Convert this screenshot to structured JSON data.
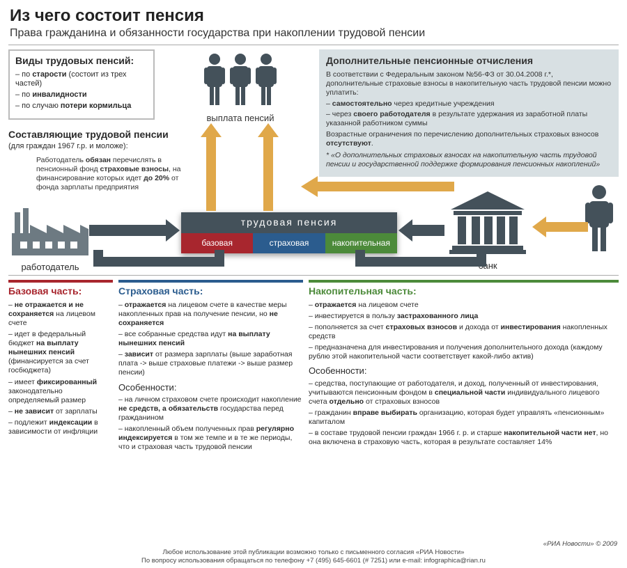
{
  "colors": {
    "bg": "#ffffff",
    "panel_bg": "#d8e0e3",
    "text": "#2a2a2a",
    "gray_dark": "#44515a",
    "gray_mid": "#6d7a82",
    "border_gray": "#bbbbbb",
    "red": "#a8262e",
    "blue": "#2b5c8e",
    "green": "#4c8a3a",
    "orange": "#d89a3a",
    "arrow_orange": "#e0a84a",
    "arrow_gray": "#44515a"
  },
  "title": "Из чего состоит пенсия",
  "subtitle": "Права гражданина и обязанности государства при накоплении трудовой пенсии",
  "types": {
    "heading": "Виды трудовых пенсий:",
    "items": [
      {
        "prefix": "– по ",
        "bold": "старости",
        "suffix": " (состоит из трех частей)"
      },
      {
        "prefix": "– по ",
        "bold": "инвалидности",
        "suffix": ""
      },
      {
        "prefix": "– по случаю ",
        "bold": "потери кормильца",
        "suffix": ""
      }
    ]
  },
  "components": {
    "heading": "Составляющие трудовой пенсии",
    "sub": "(для граждан 1967 г.р. и моложе):",
    "text_html": "Работодатель <b>обязан</b> перечислять в пенсионный фонд <b>страховые взносы</b>, на финансирование которых идет <b>до 20%</b> от фонда зарплаты предприятия"
  },
  "people_label": "выплата пенсий",
  "additional": {
    "heading": "Дополнительные пенсионные отчисления",
    "intro": "В соответствии с Федеральным законом №56-ФЗ от 30.04.2008 г.*, дополнительные страховые взносы в накопительную часть трудовой пенсии можно уплатить:",
    "items": [
      "– <b>самостоятельно</b> через кредитные учреждения",
      "– через <b>своего работодателя</b> в результате удержания из заработной платы указанной работником суммы"
    ],
    "note1": "Возрастные ограничения по перечислению дополнительных страховых взносов <b>отсутствуют</b>.",
    "note2": "* «О дополнительных страховых взносах на накопительную часть трудовой пенсии и государственной поддержке формирования пенсионных накоплений»"
  },
  "labels": {
    "employer": "работодатель",
    "bank": "банк"
  },
  "pension_bar": {
    "header": "трудовая пенсия",
    "header_bg": "#44515a",
    "cells": [
      {
        "label": "базовая",
        "bg": "#a8262e"
      },
      {
        "label": "страховая",
        "bg": "#2b5c8e"
      },
      {
        "label": "накопительная",
        "bg": "#4c8a3a"
      }
    ]
  },
  "col1": {
    "heading": "Базовая часть:",
    "items": [
      "– <b>не отражается и не сохраняется</b> на лицевом счете",
      "– идет в федеральный бюджет <b>на выплату нынешних пенсий</b> (финансируется за счет госбюджета)",
      "– имеет <b>фиксированный</b> законодательно определяемый размер",
      "– <b>не зависит</b> от зарплаты",
      "– подлежит <b>индексации</b> в зависимости от инфляции"
    ]
  },
  "col2": {
    "heading": "Страховая часть:",
    "items": [
      "– <b>отражается</b> на лицевом счете в качестве меры накопленных прав на получение пенсии, но <b>не сохраняется</b>",
      "– все собранные средства идут <b>на выплату нынешних пенсий</b>",
      "– <b>зависит</b> от размера зарплаты (выше заработная плата -> выше страховые платежи -> выше размер пенсии)"
    ],
    "features_heading": "Особенности:",
    "features": [
      "– на личном страховом счете происходит накопление <b>не средств, а обязательств</b> государства перед гражданином",
      "– накопленный объем полученных прав <b>регулярно индексируется</b> в том же темпе и в те же периоды, что и страховая часть трудовой пенсии"
    ]
  },
  "col3": {
    "heading": "Накопительная часть:",
    "items": [
      "– <b>отражается</b> на лицевом счете",
      "– инвестируется в пользу <b>застрахованного лица</b>",
      "– пополняется за счет <b>страховых взносов</b> и дохода от <b>инвестирования</b> накопленных средств",
      "– предназначена для инвестирования и получения дополнительного дохода (каждому рублю этой накопительной части соответствует какой-либо актив)"
    ],
    "features_heading": "Особенности:",
    "features": [
      "– средства, поступающие от работодателя, и доход, полученный от инвестирования, учитываются пенсионным фондом в <b>специальной части</b> индивидуального лицевого счета <b>отдельно</b> от страховых взносов",
      "– гражданин <b>вправе выбирать</b> организацию, которая будет управлять «пенсионным» капиталом",
      "– в составе трудовой пенсии граждан 1966 г. р. и старше <b>накопительной части нет</b>, но она включена в страховую часть, которая в результате составляет 14%"
    ]
  },
  "footer": {
    "copyright": "«РИА Новости» © 2009",
    "line1": "Любое использование этой публикации возможно только с письменного согласия «РИА Новости»",
    "line2": "По вопросу использования обращаться по телефону +7 (495) 645-6601 (# 7251) или e-mail: infographica@rian.ru"
  }
}
